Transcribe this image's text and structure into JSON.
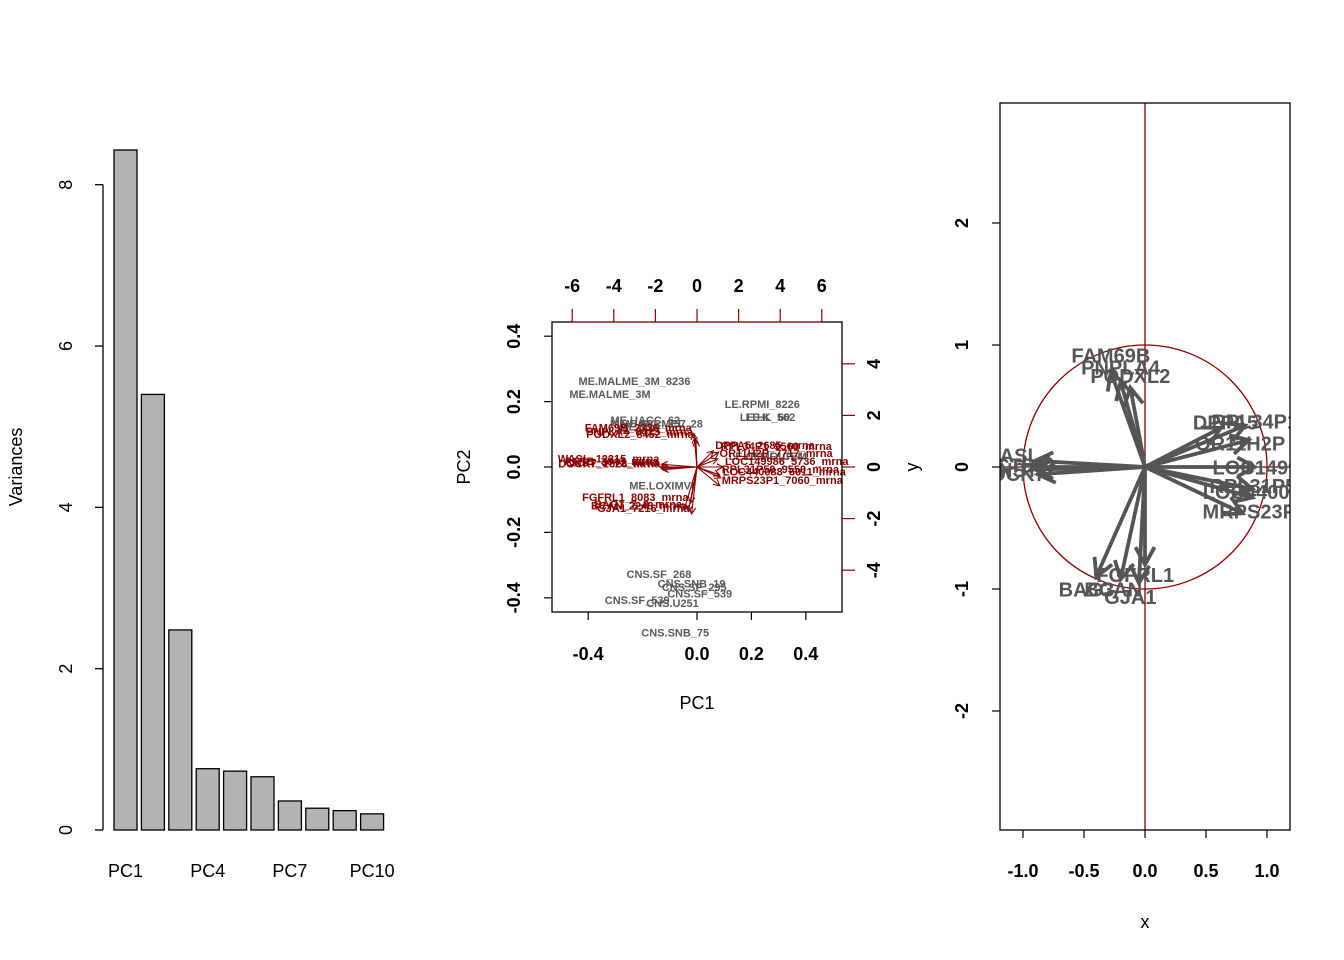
{
  "colors": {
    "bar_fill": "#b3b3b3",
    "loading": "#8b0000",
    "arrow_grey": "#555555",
    "obs_text": "#5a5a5a"
  },
  "chart_data": [
    {
      "type": "bar",
      "categories": [
        "PC1",
        "PC2",
        "PC3",
        "PC4",
        "PC5",
        "PC6",
        "PC7",
        "PC8",
        "PC9",
        "PC10"
      ],
      "x_tick_labels": [
        "PC1",
        "PC4",
        "PC7",
        "PC10"
      ],
      "values": [
        8.43,
        5.4,
        2.48,
        0.76,
        0.73,
        0.66,
        0.36,
        0.27,
        0.24,
        0.2
      ],
      "ylabel": "Variances",
      "ylim": [
        0,
        8.8
      ],
      "y_ticks": [
        0,
        2,
        4,
        6,
        8
      ]
    },
    {
      "type": "scatter",
      "subtype": "biplot",
      "xlabel": "PC1",
      "ylabel": "PC2",
      "top_axis_label": "",
      "right_axis_label": "y",
      "x_ticks": [
        -0.4,
        0.0,
        0.2,
        0.4
      ],
      "y_ticks": [
        -0.4,
        -0.2,
        0.0,
        0.2,
        0.4
      ],
      "top_ticks": [
        -6,
        -4,
        -2,
        0,
        2,
        4,
        6
      ],
      "right_ticks": [
        -4,
        -2,
        0,
        2,
        4
      ],
      "observations": [
        {
          "label": "ME.MALME_3M",
          "x": -0.32,
          "y": 0.22
        },
        {
          "label": "ME.MALME_3M_8236",
          "x": -0.23,
          "y": 0.26
        },
        {
          "label": "ME.UACC_62",
          "x": -0.19,
          "y": 0.14
        },
        {
          "label": "ME.UACC_257",
          "x": -0.18,
          "y": 0.13
        },
        {
          "label": "ME.M14",
          "x": -0.21,
          "y": 0.12
        },
        {
          "label": "ME.SK_MEL_28",
          "x": -0.13,
          "y": 0.13
        },
        {
          "label": "ME.LOXIMVI",
          "x": -0.13,
          "y": -0.06
        },
        {
          "label": "LE.RPMI_8226",
          "x": 0.24,
          "y": 0.19
        },
        {
          "label": "LE.K_562",
          "x": 0.27,
          "y": 0.15
        },
        {
          "label": "LE.HL_60",
          "x": 0.25,
          "y": 0.15
        },
        {
          "label": "LE.CCRF_CEM",
          "x": 0.26,
          "y": 0.03
        },
        {
          "label": "LE.MOLT_4",
          "x": 0.28,
          "y": 0.03
        },
        {
          "label": "CNS.SF_268",
          "x": -0.14,
          "y": -0.33
        },
        {
          "label": "CNS.SF_295",
          "x": -0.01,
          "y": -0.37
        },
        {
          "label": "CNS.SF_539",
          "x": 0.01,
          "y": -0.39
        },
        {
          "label": "CNS.SNB_75",
          "x": -0.08,
          "y": -0.51
        },
        {
          "label": "CNS.U251",
          "x": -0.09,
          "y": -0.42
        },
        {
          "label": "CNS.SNB_19",
          "x": -0.02,
          "y": -0.36
        },
        {
          "label": "CNS.SF_539",
          "x": -0.22,
          "y": -0.41
        }
      ],
      "loadings": [
        {
          "label": "FAM69B_2236_mrna",
          "x": -0.03,
          "y": 0.25
        },
        {
          "label": "PNPLA4_8423_mrna",
          "x": -0.02,
          "y": 0.22
        },
        {
          "label": "PODXL2_8452_mrna",
          "x": -0.01,
          "y": 0.2
        },
        {
          "label": "DPPA5_2685_mrna",
          "x": 0.15,
          "y": 0.12
        },
        {
          "label": "RPL34P1_9560_mrna",
          "x": 0.2,
          "y": 0.11
        },
        {
          "label": "OR11H2P_7717_mrna",
          "x": 0.19,
          "y": 0.06
        },
        {
          "label": "LOC149986_5736_mrna",
          "x": 0.24,
          "y": 0.0
        },
        {
          "label": "RPL31P50_9550_mrna",
          "x": 0.21,
          "y": -0.06
        },
        {
          "label": "LOC440088_6011_mrna",
          "x": 0.22,
          "y": -0.08
        },
        {
          "label": "MRPS23P1_7060_mrna",
          "x": 0.21,
          "y": -0.14
        },
        {
          "label": "WASL_12215_mrna",
          "x": -0.33,
          "y": 0.02
        },
        {
          "label": "ACTB_3843_mrna",
          "x": -0.34,
          "y": 0.0
        },
        {
          "label": "CNST_3772_mrna",
          "x": -0.33,
          "y": -0.01
        },
        {
          "label": "DOCK7_2628_mrna",
          "x": -0.32,
          "y": -0.02
        },
        {
          "label": "FGFRL1_8083_mrna",
          "x": -0.06,
          "y": -0.27
        },
        {
          "label": "BAG3_7_8_mrna",
          "x": -0.12,
          "y": -0.32
        },
        {
          "label": "BCAN_2248_mrna",
          "x": -0.08,
          "y": -0.33
        },
        {
          "label": "GJA1_7216_mrna",
          "x": -0.05,
          "y": -0.35
        }
      ]
    },
    {
      "type": "scatter",
      "subtype": "correlation circle",
      "xlabel": "x",
      "ylabel": "",
      "x_ticks": [
        -1.0,
        -0.5,
        0.0,
        0.5,
        1.0
      ],
      "y_ticks": [
        -2,
        -1,
        0,
        1,
        2
      ],
      "xlim": [
        -1.2,
        1.2
      ],
      "ylim": [
        -2.97,
        2.97
      ],
      "vectors": [
        {
          "label": "FAM69B",
          "x": -0.28,
          "y": 0.78
        },
        {
          "label": "PNPLA4",
          "x": -0.2,
          "y": 0.7
        },
        {
          "label": "PODXL2",
          "x": -0.12,
          "y": 0.65
        },
        {
          "label": "DPPA5",
          "x": 0.62,
          "y": 0.32
        },
        {
          "label": "RPL34P1",
          "x": 0.82,
          "y": 0.34
        },
        {
          "label": "OR11H2P",
          "x": 0.85,
          "y": 0.22
        },
        {
          "label": "LOC149986",
          "x": 0.9,
          "y": 0.0
        },
        {
          "label": "RPL31P50",
          "x": 0.88,
          "y": -0.18
        },
        {
          "label": "LOC440088",
          "x": 0.88,
          "y": -0.25
        },
        {
          "label": "MRPS23P1",
          "x": 0.8,
          "y": -0.38
        },
        {
          "label": "WASL",
          "x": -0.9,
          "y": 0.05
        },
        {
          "label": "ACTB",
          "x": -0.92,
          "y": 0.0
        },
        {
          "label": "CNST",
          "x": -0.9,
          "y": -0.02
        },
        {
          "label": "DOCK7",
          "x": -0.88,
          "y": -0.06
        },
        {
          "label": "FGFRL1",
          "x": 0.0,
          "y": -0.8
        },
        {
          "label": "BAG3",
          "x": -0.4,
          "y": -0.9
        },
        {
          "label": "BCAN",
          "x": -0.2,
          "y": -0.92
        },
        {
          "label": "GJA1",
          "x": -0.05,
          "y": -0.95
        }
      ],
      "visible_labels": [
        {
          "text": "FAM69B",
          "x": -0.28,
          "y": 0.9
        },
        {
          "text": "PNPLA4",
          "x": -0.2,
          "y": 0.8
        },
        {
          "text": "PODXL2",
          "x": -0.12,
          "y": 0.73
        },
        {
          "text": "DPPA5",
          "x": 0.66,
          "y": 0.35
        },
        {
          "text": "RPL34P1",
          "x": 0.9,
          "y": 0.36
        },
        {
          "text": "OR11H2P",
          "x": 0.78,
          "y": 0.18
        },
        {
          "text": "LOC149986",
          "x": 1.0,
          "y": -0.02
        },
        {
          "text": "RPL31P50",
          "x": 0.93,
          "y": -0.17
        },
        {
          "text": "LOC440088",
          "x": 0.92,
          "y": -0.22
        },
        {
          "text": "MRPS23P1",
          "x": 0.9,
          "y": -0.38
        },
        {
          "text": "WASL",
          "x": -1.1,
          "y": 0.08
        },
        {
          "text": "ACTB",
          "x": -1.12,
          "y": 0.0
        },
        {
          "text": "CNST",
          "x": -1.1,
          "y": -0.04
        },
        {
          "text": "DOCK7",
          "x": -1.1,
          "y": -0.07
        },
        {
          "text": "FGFRL1",
          "x": -0.08,
          "y": -0.9
        },
        {
          "text": "BAG3",
          "x": -0.48,
          "y": -1.02
        },
        {
          "text": "BCAN",
          "x": -0.26,
          "y": -1.02
        },
        {
          "text": "GJA1",
          "x": -0.12,
          "y": -1.08
        }
      ]
    }
  ]
}
